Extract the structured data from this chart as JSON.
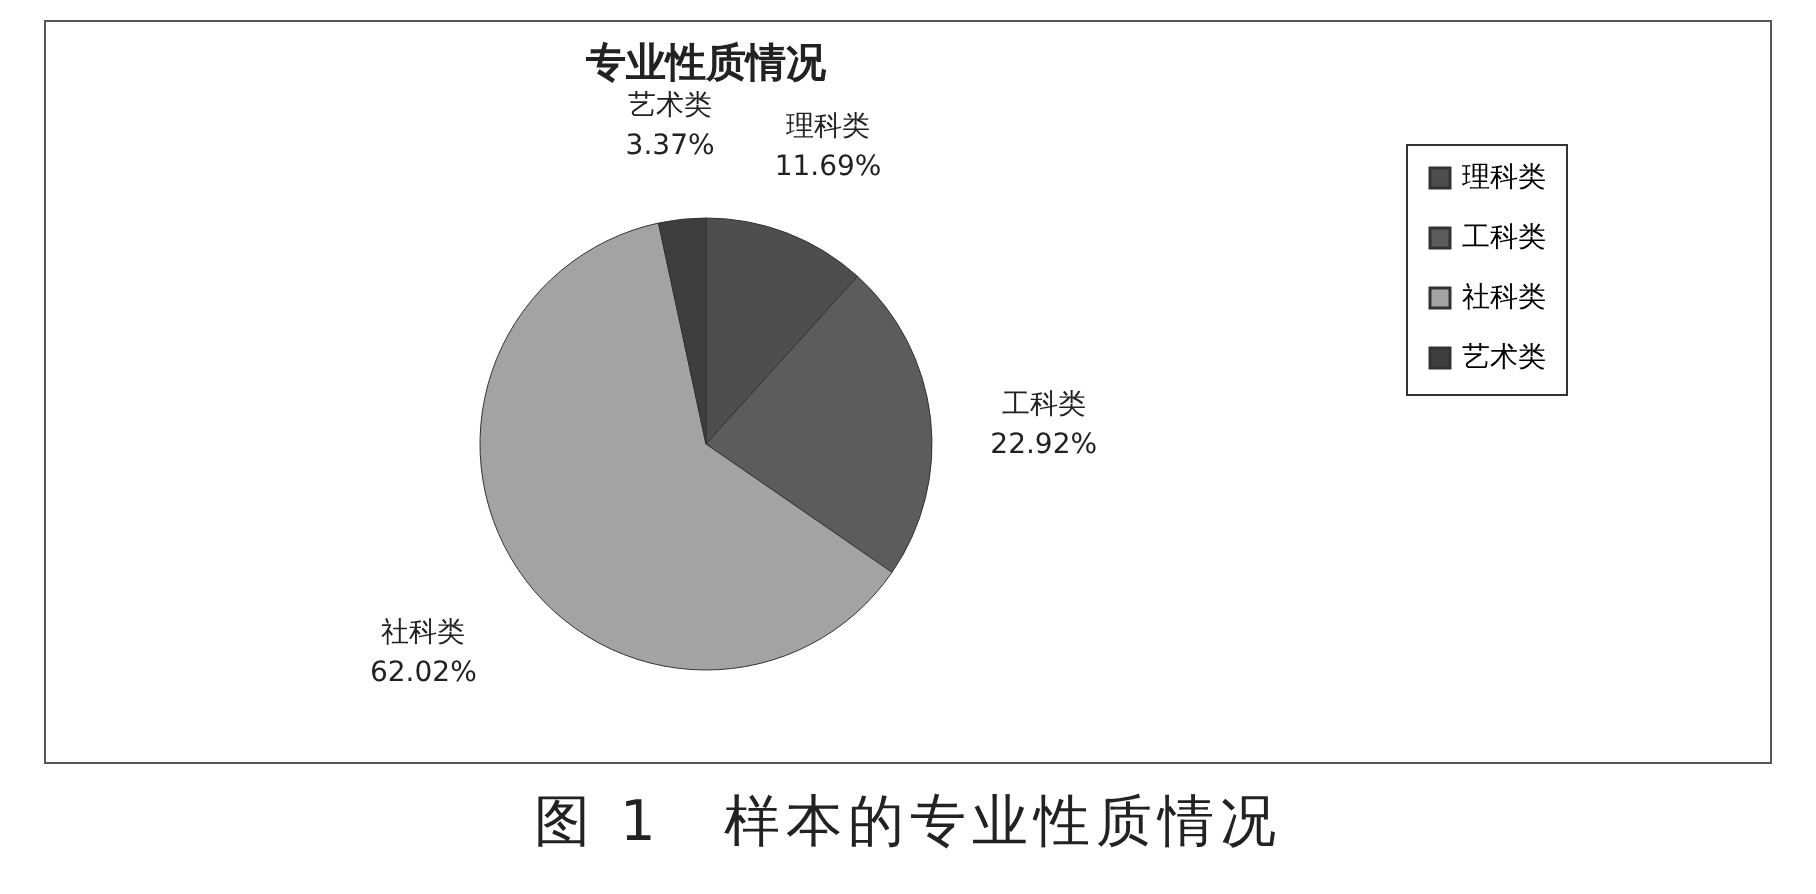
{
  "chart_data": {
    "type": "pie",
    "title": "专业性质情况",
    "categories": [
      "理科类",
      "工科类",
      "社科类",
      "艺术类"
    ],
    "values": [
      11.69,
      22.92,
      62.02,
      3.37
    ],
    "value_labels": [
      "11.69%",
      "22.92%",
      "62.02%",
      "3.37%"
    ],
    "colors": [
      "#4e4e4e",
      "#5c5c5c",
      "#a3a3a3",
      "#3e3e3e"
    ],
    "legend": "right",
    "annotations": [
      "图 1　样本的专业性质情况"
    ]
  }
}
